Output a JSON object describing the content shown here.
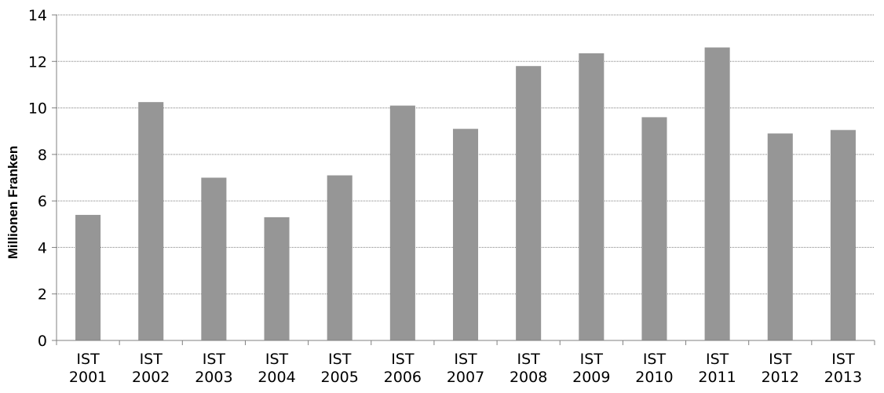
{
  "chart_data": {
    "type": "bar",
    "categories": [
      [
        "IST",
        "2001"
      ],
      [
        "IST",
        "2002"
      ],
      [
        "IST",
        "2003"
      ],
      [
        "IST",
        "2004"
      ],
      [
        "IST",
        "2005"
      ],
      [
        "IST",
        "2006"
      ],
      [
        "IST",
        "2007"
      ],
      [
        "IST",
        "2008"
      ],
      [
        "IST",
        "2009"
      ],
      [
        "IST",
        "2010"
      ],
      [
        "IST",
        "2011"
      ],
      [
        "IST",
        "2012"
      ],
      [
        "IST",
        "2013"
      ]
    ],
    "values": [
      5.4,
      10.25,
      7.0,
      5.3,
      7.1,
      10.1,
      9.1,
      11.8,
      12.35,
      9.6,
      12.6,
      8.9,
      9.05
    ],
    "title": "",
    "xlabel": "",
    "ylabel": "Millionen Franken",
    "ylim": [
      0,
      14
    ],
    "yticks": [
      0,
      2,
      4,
      6,
      8,
      10,
      12,
      14
    ],
    "grid": true,
    "legend": "none",
    "bar_color": "#969696",
    "grid_color": "#808080"
  }
}
